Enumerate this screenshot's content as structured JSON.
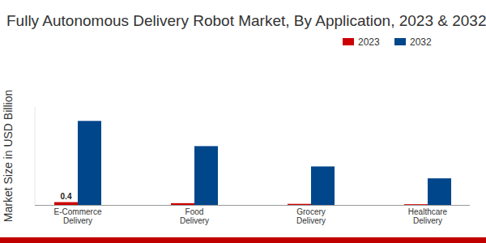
{
  "chart_data": {
    "type": "bar",
    "title": "Fully Autonomous Delivery Robot Market, By Application, 2023 & 2032",
    "y_label": "Market Size in USD Billion",
    "categories": [
      "E-Commerce Delivery",
      "Food Delivery",
      "Grocery Delivery",
      "Healthcare Delivery"
    ],
    "series": [
      {
        "name": "2023",
        "color": "#cc0000",
        "values": [
          0.4,
          0.25,
          0.15,
          0.1
        ],
        "value_labels": [
          "0.4",
          null,
          null,
          null
        ]
      },
      {
        "name": "2032",
        "color": "#00468b",
        "values": [
          12.0,
          8.4,
          5.5,
          3.8
        ]
      }
    ],
    "ylim": [
      0,
      14
    ],
    "grid": false,
    "legend": "top-right",
    "tick_labels": "x",
    "data_labels": true
  }
}
